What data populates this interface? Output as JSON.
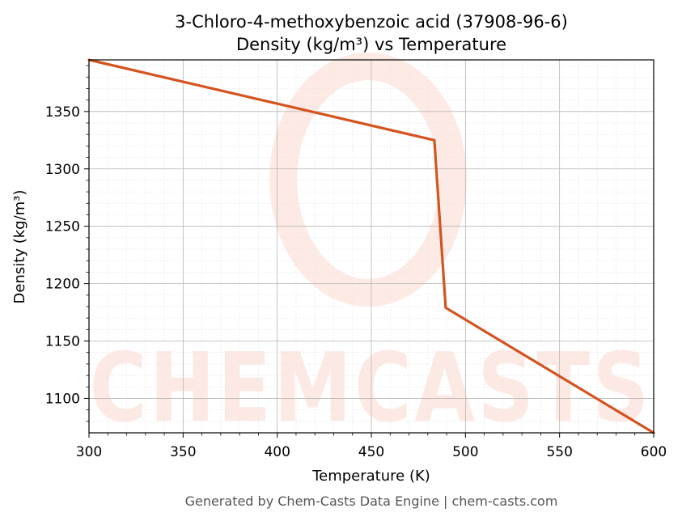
{
  "chart_data": {
    "type": "line",
    "title": "3-Chloro-4-methoxybenzoic acid (37908-96-6)",
    "subtitle": "Density (kg/m³) vs Temperature",
    "xlabel": "Temperature (K)",
    "ylabel": "Density (kg/m³)",
    "xlim": [
      300,
      600
    ],
    "ylim": [
      1070,
      1395
    ],
    "xticks": [
      300,
      350,
      400,
      450,
      500,
      550,
      600
    ],
    "yticks": [
      1100,
      1150,
      1200,
      1250,
      1300,
      1350
    ],
    "grid": true,
    "series": [
      {
        "color": "#d4531f",
        "x": [
          300,
          483.5,
          489.5,
          600
        ],
        "y": [
          1395,
          1325,
          1179,
          1070
        ]
      }
    ],
    "watermark": "CHEMCASTS",
    "footer": "Generated by Chem-Casts Data Engine | chem-casts.com"
  }
}
